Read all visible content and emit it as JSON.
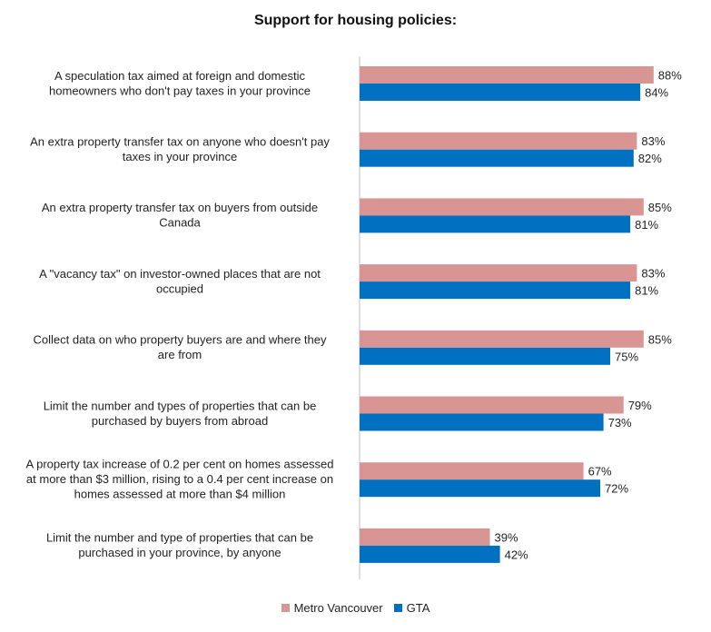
{
  "chart_data": {
    "type": "bar",
    "orientation": "horizontal",
    "title": "Support for housing policies:",
    "categories": [
      [
        "A speculation tax aimed at foreign and domestic",
        "homeowners who don't pay taxes in your province"
      ],
      [
        "An extra property transfer tax on anyone who doesn't pay",
        "taxes in your province"
      ],
      [
        "An extra property transfer tax on buyers from outside",
        "Canada"
      ],
      [
        "A \"vacancy tax\" on investor-owned places that are not",
        "occupied"
      ],
      [
        "Collect data on who property buyers are and where they",
        "are from"
      ],
      [
        "Limit the number and types of properties that can be",
        "purchased by buyers from abroad"
      ],
      [
        "A property tax increase of 0.2 per cent on homes assessed",
        "at more than $3 million, rising to a 0.4 per cent increase on",
        "homes assessed at more than $4 million"
      ],
      [
        "Limit the number and type of properties that can be",
        "purchased in your province, by anyone"
      ]
    ],
    "series": [
      {
        "name": "Metro Vancouver",
        "color": "#d99594",
        "values": [
          88,
          83,
          85,
          83,
          85,
          79,
          67,
          39
        ],
        "labels": [
          "88%",
          "83%",
          "85%",
          "83%",
          "85%",
          "79%",
          "67%",
          "39%"
        ]
      },
      {
        "name": "GTA",
        "color": "#0070c0",
        "values": [
          84,
          82,
          81,
          81,
          75,
          73,
          72,
          42
        ],
        "labels": [
          "84%",
          "82%",
          "81%",
          "81%",
          "75%",
          "73%",
          "72%",
          "42%"
        ]
      }
    ],
    "xlim": [
      0,
      100
    ],
    "grid": false,
    "legend_position": "bottom"
  }
}
